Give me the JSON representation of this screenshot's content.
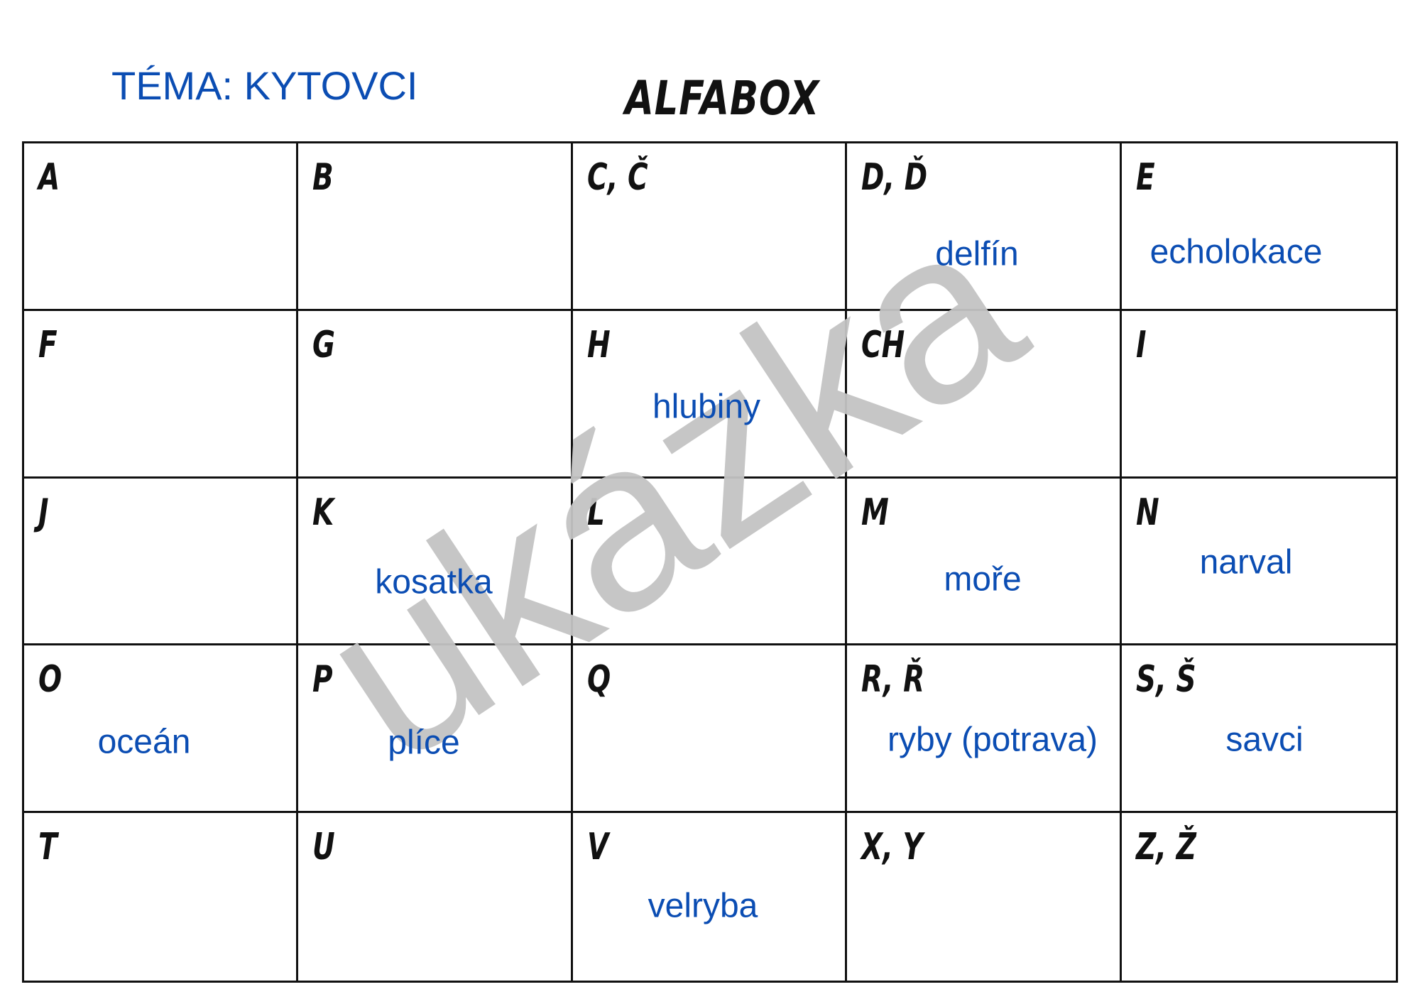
{
  "theme": "TÉMA: KYTOVCI",
  "title": "ALFABOX",
  "watermark": "ukázka",
  "colors": {
    "accent": "#0b4db3",
    "watermark": "#c4c4c4",
    "grid": "#111111"
  },
  "cells": [
    {
      "letter": "A",
      "word": ""
    },
    {
      "letter": "B",
      "word": ""
    },
    {
      "letter": "C, Č",
      "word": ""
    },
    {
      "letter": "D, Ď",
      "word": "delfín"
    },
    {
      "letter": "E",
      "word": "echolokace"
    },
    {
      "letter": "F",
      "word": ""
    },
    {
      "letter": "G",
      "word": ""
    },
    {
      "letter": "H",
      "word": "hlubiny"
    },
    {
      "letter": "CH",
      "word": ""
    },
    {
      "letter": "I",
      "word": ""
    },
    {
      "letter": "J",
      "word": ""
    },
    {
      "letter": "K",
      "word": "kosatka"
    },
    {
      "letter": "L",
      "word": ""
    },
    {
      "letter": "M",
      "word": "moře"
    },
    {
      "letter": "N",
      "word": "narval"
    },
    {
      "letter": "O",
      "word": "oceán"
    },
    {
      "letter": "P",
      "word": "plíce"
    },
    {
      "letter": "Q",
      "word": ""
    },
    {
      "letter": "R, Ř",
      "word": "ryby (potrava)"
    },
    {
      "letter": "S, Š",
      "word": "savci"
    },
    {
      "letter": "T",
      "word": ""
    },
    {
      "letter": "U",
      "word": ""
    },
    {
      "letter": "V",
      "word": "velryba"
    },
    {
      "letter": "X, Y",
      "word": ""
    },
    {
      "letter": "Z, Ž",
      "word": ""
    }
  ]
}
